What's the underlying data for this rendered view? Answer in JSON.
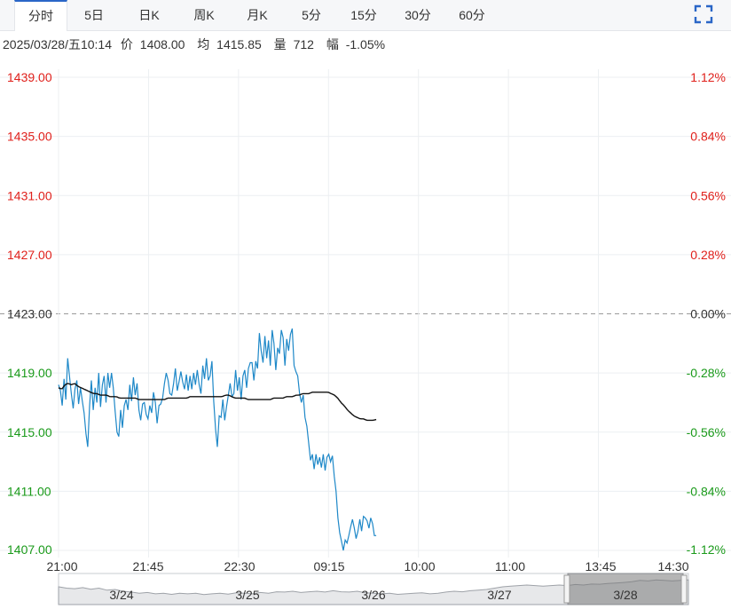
{
  "tabs": [
    {
      "label": "分时",
      "active": true
    },
    {
      "label": "5日"
    },
    {
      "label": "日K"
    },
    {
      "label": "周K"
    },
    {
      "label": "月K"
    },
    {
      "label": "5分"
    },
    {
      "label": "15分"
    },
    {
      "label": "30分"
    },
    {
      "label": "60分"
    }
  ],
  "expand_icon": "fullscreen-icon",
  "info": {
    "datetime": "2025/03/28/五10:14",
    "price_label": "价",
    "price": "1408.00",
    "avg_label": "均",
    "avg": "1415.85",
    "volume_label": "量",
    "volume": "712",
    "change_label": "幅",
    "change": "-1.05%"
  },
  "colors": {
    "up": "#e0201b",
    "down": "#1a9a1a",
    "neutral": "#333333",
    "price_line": "#1e88c8",
    "avg_line": "#111111",
    "grid": "#eceff2",
    "accent": "#2a66c7"
  },
  "chart_data": {
    "type": "line",
    "ylim": [
      1407.0,
      1439.0
    ],
    "prev_close": 1423.0,
    "y_ticks_left": [
      "1439.00",
      "1435.00",
      "1431.00",
      "1427.00",
      "1423.00",
      "1419.00",
      "1415.00",
      "1411.00",
      "1407.00"
    ],
    "y_ticks_right": [
      "1.12%",
      "0.84%",
      "0.56%",
      "0.28%",
      "0.00%",
      "-0.28%",
      "-0.56%",
      "-0.84%",
      "-1.12%"
    ],
    "x_ticks": [
      "21:00",
      "21:45",
      "22:30",
      "09:15",
      "10:00",
      "11:00",
      "13:45",
      "14:30"
    ],
    "x_slots": 345,
    "series": [
      {
        "role": "price",
        "values": [
          1418.2,
          1417.8,
          1416.8,
          1418.6,
          1417.2,
          1420.0,
          1418.8,
          1417.6,
          1416.6,
          1417.9,
          1418.5,
          1416.9,
          1418.0,
          1417.1,
          1416.3,
          1414.9,
          1414.0,
          1416.8,
          1418.5,
          1416.5,
          1418.0,
          1417.0,
          1419.0,
          1416.7,
          1418.2,
          1418.8,
          1417.0,
          1419.0,
          1418.0,
          1419.0,
          1418.0,
          1416.4,
          1415.0,
          1414.7,
          1416.5,
          1415.3,
          1416.8,
          1417.2,
          1416.5,
          1418.2,
          1417.1,
          1418.7,
          1417.5,
          1418.3,
          1416.5,
          1415.8,
          1416.9,
          1417.0,
          1416.2,
          1415.9,
          1416.8,
          1416.3,
          1417.7,
          1417.0,
          1415.6,
          1416.8,
          1416.9,
          1417.3,
          1418.3,
          1419.0,
          1418.5,
          1417.6,
          1417.5,
          1418.3,
          1419.3,
          1417.8,
          1418.4,
          1419.1,
          1418.4,
          1417.9,
          1418.9,
          1417.8,
          1418.8,
          1417.9,
          1419.0,
          1418.2,
          1419.2,
          1418.2,
          1417.6,
          1419.5,
          1418.6,
          1420.0,
          1418.5,
          1418.8,
          1419.8,
          1417.1,
          1415.2,
          1414.0,
          1416.1,
          1416.0,
          1417.2,
          1415.8,
          1416.7,
          1417.5,
          1418.3,
          1417.4,
          1417.6,
          1419.2,
          1417.8,
          1418.7,
          1417.2,
          1418.8,
          1419.2,
          1418.0,
          1419.3,
          1419.7,
          1419.7,
          1418.5,
          1419.8,
          1419.3,
          1421.7,
          1420.5,
          1419.7,
          1421.5,
          1420.0,
          1421.2,
          1419.5,
          1421.9,
          1421.0,
          1419.2,
          1420.7,
          1420.3,
          1421.9,
          1421.4,
          1419.5,
          1421.3,
          1420.5,
          1421.6,
          1422.0,
          1419.5,
          1419.1,
          1418.8,
          1417.6,
          1417.0,
          1417.5,
          1416.0,
          1415.4,
          1414.3,
          1413.1,
          1413.5,
          1412.5,
          1413.5,
          1412.8,
          1413.3,
          1412.6,
          1413.5,
          1412.4,
          1413.3,
          1413.5,
          1413.0,
          1413.4,
          1412.0,
          1411.0,
          1409.2,
          1408.2,
          1407.6,
          1407.0,
          1407.7,
          1407.5,
          1408.0,
          1408.6,
          1409.1,
          1408.5,
          1407.8,
          1408.3,
          1409.1,
          1408.3,
          1409.3,
          1409.2,
          1409.0,
          1408.5,
          1409.2,
          1408.8,
          1408.0,
          1408.0
        ]
      },
      {
        "role": "average",
        "values": [
          1418.0,
          1417.9,
          1418.2,
          1418.3,
          1418.2,
          1418.3,
          1418.1,
          1418.0,
          1417.9,
          1417.8,
          1417.7,
          1417.6,
          1417.6,
          1417.5,
          1417.5,
          1417.5,
          1417.4,
          1417.4,
          1417.4,
          1417.3,
          1417.3,
          1417.3,
          1417.3,
          1417.3,
          1417.3,
          1417.2,
          1417.2,
          1417.2,
          1417.2,
          1417.2,
          1417.2,
          1417.2,
          1417.2,
          1417.2,
          1417.3,
          1417.3,
          1417.3,
          1417.3,
          1417.3,
          1417.3,
          1417.3,
          1417.4,
          1417.4,
          1417.4,
          1417.4,
          1417.4,
          1417.4,
          1417.4,
          1417.4,
          1417.4,
          1417.4,
          1417.4,
          1417.5,
          1417.5,
          1417.4,
          1417.3,
          1417.3,
          1417.3,
          1417.3,
          1417.2,
          1417.2,
          1417.2,
          1417.2,
          1417.2,
          1417.2,
          1417.2,
          1417.2,
          1417.3,
          1417.3,
          1417.3,
          1417.3,
          1417.4,
          1417.4,
          1417.4,
          1417.5,
          1417.5,
          1417.6,
          1417.6,
          1417.6,
          1417.7,
          1417.7,
          1417.7,
          1417.7,
          1417.7,
          1417.7,
          1417.6,
          1417.5,
          1417.3,
          1417.0,
          1416.8,
          1416.5,
          1416.3,
          1416.1,
          1416.0,
          1415.9,
          1415.9,
          1415.8,
          1415.8,
          1415.8,
          1415.85
        ]
      }
    ],
    "navigator": {
      "dates": [
        "3/24",
        "3/25",
        "3/26",
        "3/27",
        "3/28"
      ],
      "selected": "3/28",
      "trend": [
        0.55,
        0.5,
        0.48,
        0.52,
        0.46,
        0.5,
        0.42,
        0.45,
        0.38,
        0.35,
        0.3,
        0.33,
        0.28,
        0.3,
        0.26,
        0.3,
        0.28,
        0.3,
        0.25,
        0.28,
        0.3,
        0.27,
        0.32,
        0.3,
        0.28,
        0.33,
        0.3,
        0.36,
        0.35,
        0.38,
        0.33,
        0.36,
        0.38,
        0.35,
        0.4,
        0.36,
        0.35,
        0.38,
        0.32,
        0.3,
        0.28,
        0.3,
        0.26,
        0.28,
        0.3,
        0.32,
        0.28,
        0.3,
        0.35,
        0.38,
        0.36,
        0.4,
        0.42,
        0.45,
        0.5,
        0.55,
        0.58,
        0.6,
        0.62,
        0.6,
        0.58,
        0.6,
        0.62,
        0.6,
        0.64,
        0.62,
        0.66,
        0.65,
        0.68,
        0.7,
        0.72,
        0.75,
        0.8,
        0.78,
        0.82,
        0.8,
        0.78,
        0.8,
        0.82
      ]
    }
  }
}
